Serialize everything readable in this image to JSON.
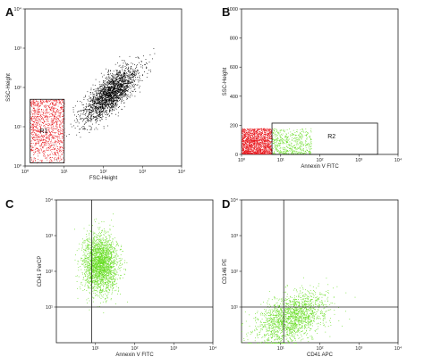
{
  "chart_data": [
    {
      "panel": "A",
      "type": "scatter",
      "scale": "log",
      "xlabel": "FSC-Height",
      "ylabel": "SSC-Height",
      "xlim": [
        1,
        10000
      ],
      "ylim": [
        1,
        10000
      ],
      "xticks": [
        {
          "v": 1,
          "t": "10⁰"
        },
        {
          "v": 10,
          "t": "10¹"
        },
        {
          "v": 100,
          "t": "10²"
        },
        {
          "v": 1000,
          "t": "10³"
        },
        {
          "v": 10000,
          "t": "10⁴"
        }
      ],
      "yticks": [
        {
          "v": 1,
          "t": "10⁰"
        },
        {
          "v": 10,
          "t": "10¹"
        },
        {
          "v": 100,
          "t": "10²"
        },
        {
          "v": 1000,
          "t": "10³"
        },
        {
          "v": 10000,
          "t": "10⁴"
        }
      ],
      "series": [
        {
          "color": "#000000",
          "points": 2200,
          "center": [
            150,
            70
          ],
          "spread": [
            0.35,
            0.35
          ],
          "corr": 0.75
        },
        {
          "color": "#e8141a",
          "points": 1100,
          "region": [
            [
              1.3,
              1.2
            ],
            [
              10,
              50
            ]
          ]
        }
      ],
      "gates": [
        {
          "label": "R1",
          "shape": "rect",
          "x": [
            1.35,
            10
          ],
          "y": [
            1.2,
            50
          ],
          "label_at": [
            3,
            7
          ]
        }
      ]
    },
    {
      "panel": "B",
      "type": "scatter",
      "scale": "log-linear",
      "xlabel": "Annexin V FITC",
      "ylabel": "SSC-Height",
      "xlim": [
        1,
        10000
      ],
      "ylim": [
        0,
        1000
      ],
      "xticks": [
        {
          "v": 1,
          "t": "10⁰"
        },
        {
          "v": 10,
          "t": "10¹"
        },
        {
          "v": 100,
          "t": "10²"
        },
        {
          "v": 1000,
          "t": "10³"
        },
        {
          "v": 10000,
          "t": "10⁴"
        }
      ],
      "yticks": [
        {
          "v": 0,
          "t": "0"
        },
        {
          "v": 200,
          "t": "200"
        },
        {
          "v": 400,
          "t": "400"
        },
        {
          "v": 600,
          "t": "600"
        },
        {
          "v": 800,
          "t": "800"
        },
        {
          "v": 1000,
          "t": "1000"
        }
      ],
      "series": [
        {
          "color": "#e8141a",
          "points": 1500,
          "region": [
            [
              1,
              5
            ],
            [
              6,
              180
            ]
          ]
        },
        {
          "color": "#66dd22",
          "points": 500,
          "region": [
            [
              6,
              5
            ],
            [
              60,
              180
            ]
          ]
        }
      ],
      "gates": [
        {
          "label": "R2",
          "shape": "rect",
          "x": [
            6,
            3000
          ],
          "y": [
            0,
            215
          ],
          "label_at": [
            200,
            110
          ]
        }
      ]
    },
    {
      "panel": "C",
      "type": "scatter",
      "scale": "log",
      "xlabel": "Annexin V FITC",
      "ylabel": "CD41 PerCP",
      "xlim": [
        1,
        10000
      ],
      "ylim": [
        1,
        10000
      ],
      "xticks": [
        {
          "v": 10,
          "t": "10¹"
        },
        {
          "v": 100,
          "t": "10²"
        },
        {
          "v": 1000,
          "t": "10³"
        },
        {
          "v": 10000,
          "t": "10⁴"
        }
      ],
      "yticks": [
        {
          "v": 10,
          "t": "10¹"
        },
        {
          "v": 100,
          "t": "10²"
        },
        {
          "v": 1000,
          "t": "10³"
        },
        {
          "v": 10000,
          "t": "10⁴"
        }
      ],
      "series": [
        {
          "color": "#66dd22",
          "points": 2400,
          "center": [
            13,
            160
          ],
          "spread": [
            0.22,
            0.4
          ],
          "corr": 0
        }
      ],
      "quadrant": {
        "x": 8,
        "y": 10
      }
    },
    {
      "panel": "D",
      "type": "scatter",
      "scale": "log",
      "xlabel": "CD41 APC",
      "ylabel": "CD146 PE",
      "xlim": [
        1,
        10000
      ],
      "ylim": [
        1,
        10000
      ],
      "xticks": [
        {
          "v": 10,
          "t": "10¹"
        },
        {
          "v": 100,
          "t": "10²"
        },
        {
          "v": 1000,
          "t": "10³"
        },
        {
          "v": 10000,
          "t": "10⁴"
        }
      ],
      "yticks": [
        {
          "v": 10,
          "t": "10¹"
        },
        {
          "v": 100,
          "t": "10²"
        },
        {
          "v": 1000,
          "t": "10³"
        },
        {
          "v": 10000,
          "t": "10⁴"
        }
      ],
      "series": [
        {
          "color": "#66dd22",
          "points": 1800,
          "center": [
            18,
            5
          ],
          "spread": [
            0.45,
            0.35
          ],
          "corr": 0.45
        }
      ],
      "quadrant": {
        "x": 12,
        "y": 10
      }
    }
  ]
}
